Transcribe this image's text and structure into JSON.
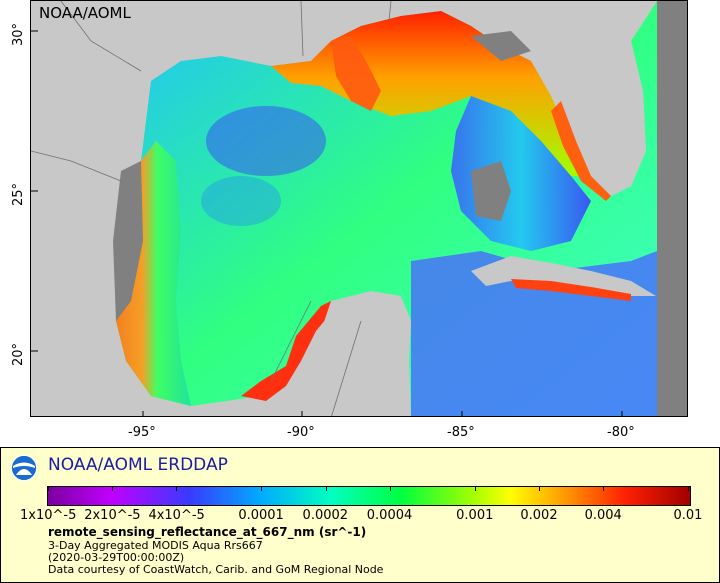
{
  "watermark": "NOAA/AOML",
  "map": {
    "lon_range": [
      -98,
      -78
    ],
    "lat_range": [
      18,
      31
    ],
    "x_ticks": [
      "-95°",
      "-90°",
      "-85°",
      "-80°"
    ],
    "y_ticks": [
      "30°",
      "25°",
      "20°"
    ],
    "land_color": "#c8c8c8",
    "nodata_color": "#808080"
  },
  "legend": {
    "title": "NOAA/AOML ERDDAP",
    "colorbar_labels": [
      "1x10^-5",
      "2x10^-5",
      "4x10^-5",
      "0.0001",
      "0.0002",
      "0.0004",
      "0.001",
      "0.002",
      "0.004",
      "0.01"
    ],
    "colorbar_scale": "log",
    "colorbar_range": [
      1e-05,
      0.01
    ],
    "colorbar_colors": [
      "#7a00a0",
      "#c000ff",
      "#3a3aff",
      "#00aaff",
      "#00ffc0",
      "#00ff40",
      "#a0ff00",
      "#ffff00",
      "#ffa000",
      "#ff2000",
      "#a00000"
    ],
    "variable": "remote_sensing_reflectance_at_667_nm (sr^-1)",
    "info_lines": [
      "3-Day Aggregated MODIS Aqua Rrs667",
      "(2020-03-29T00:00:00Z)",
      "Data courtesy of CoastWatch, Carib. and GoM Regional Node"
    ]
  }
}
